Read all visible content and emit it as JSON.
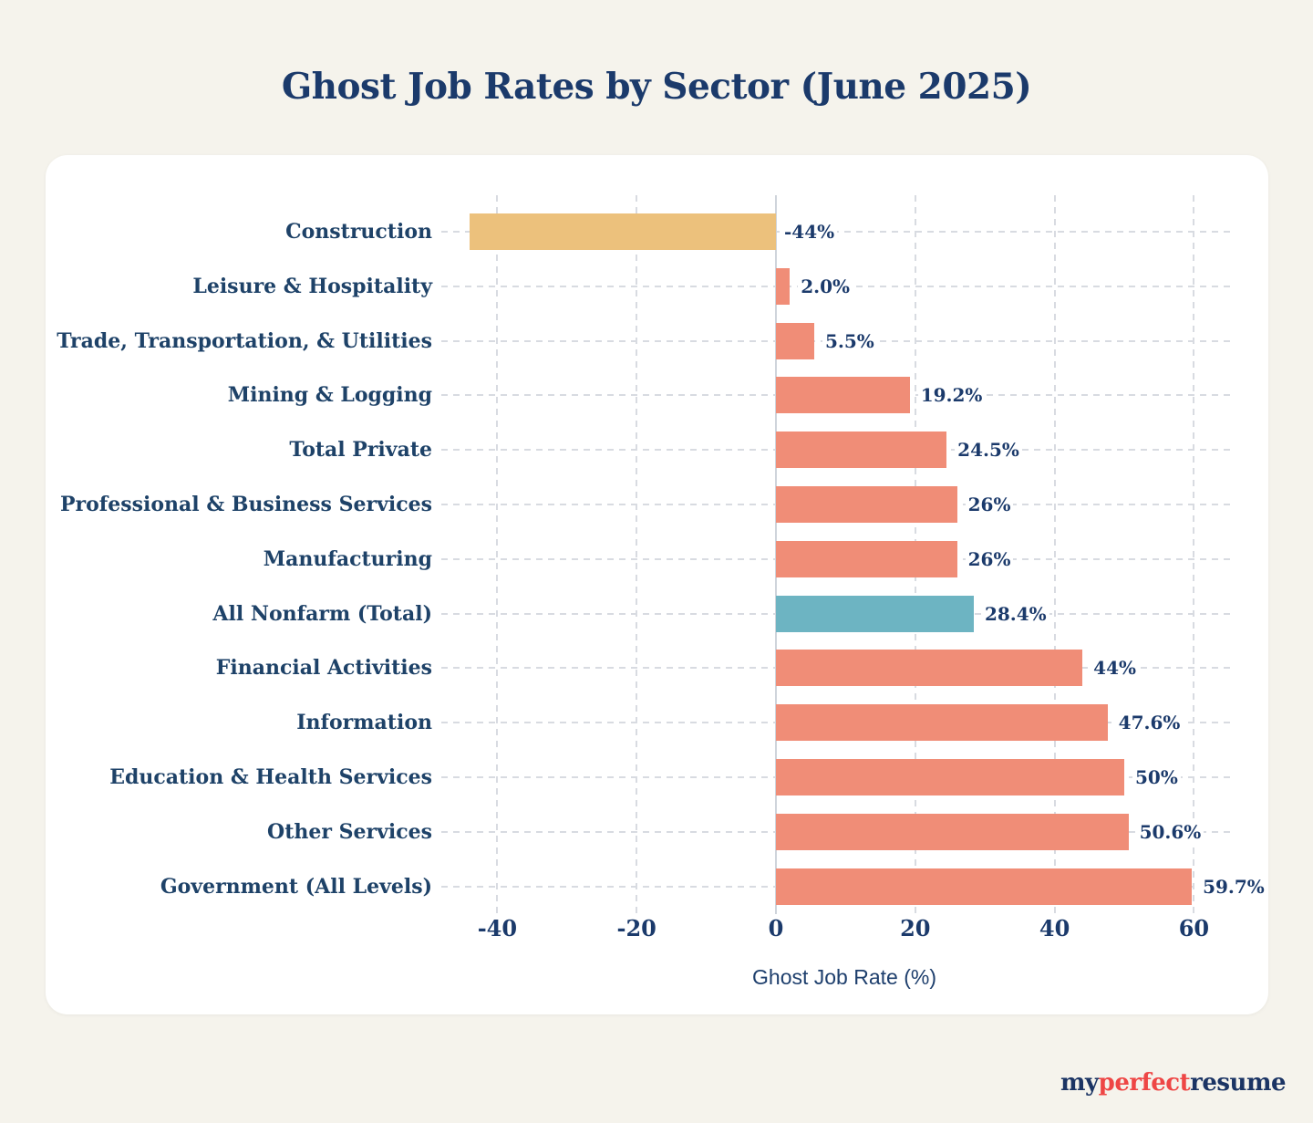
{
  "page": {
    "background": "#f5f3ec"
  },
  "header": {
    "title": "Ghost Job Rates by Sector (June 2025)"
  },
  "chart_data": {
    "type": "bar",
    "orientation": "horizontal",
    "title": "Ghost Job Rates by Sector (June 2025)",
    "xlabel": "Ghost Job Rate (%)",
    "xlim": [
      -47,
      66
    ],
    "xticks": [
      -40,
      -20,
      0,
      20,
      40,
      60
    ],
    "grid": true,
    "legend": false,
    "categories": [
      "Construction",
      "Leisure & Hospitality",
      "Trade, Transportation, & Utilities",
      "Mining & Logging",
      "Total Private",
      "Professional & Business Services",
      "Manufacturing",
      "All Nonfarm (Total)",
      "Financial Activities",
      "Information",
      "Education & Health Services",
      "Other Services",
      "Government (All Levels)"
    ],
    "values": [
      -44,
      2.0,
      5.5,
      19.2,
      24.5,
      26,
      26,
      28.4,
      44,
      47.6,
      50,
      50.6,
      59.7
    ],
    "value_labels": [
      "-44%",
      "2.0%",
      "5.5%",
      "19.2%",
      "24.5%",
      "26%",
      "26%",
      "28.4%",
      "44%",
      "47.6%",
      "50%",
      "50.6%",
      "59.7%"
    ],
    "bar_colors": [
      "#ecc17c",
      "#f08d77",
      "#f08d77",
      "#f08d77",
      "#f08d77",
      "#f08d77",
      "#f08d77",
      "#6db4c2",
      "#f08d77",
      "#f08d77",
      "#f08d77",
      "#f08d77",
      "#f08d77"
    ],
    "colors": {
      "bar_default": "#f08d77",
      "bar_highlight": "#6db4c2",
      "bar_negative": "#ecc17c",
      "grid": "#d8dbe1",
      "text": "#1b3a6b",
      "axis_label": "#1e3f6d"
    }
  },
  "footer": {
    "brand": [
      {
        "text": "my",
        "color": "#1b3464"
      },
      {
        "text": "perfect",
        "color": "#ee4645"
      },
      {
        "text": "resume",
        "color": "#1b3464"
      }
    ]
  }
}
